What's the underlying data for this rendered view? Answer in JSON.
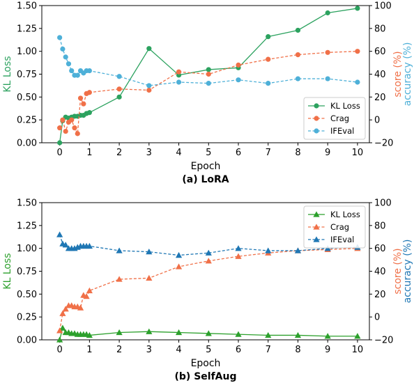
{
  "chart_data": [
    {
      "type": "line",
      "caption": "(a) LoRA",
      "xlabel": "Epoch",
      "ylabel": "KL Loss",
      "ylabel_right": [
        "score (%)",
        "accuracy (%)"
      ],
      "ylim": [
        0,
        1.5
      ],
      "ylim_right": [
        -20,
        100
      ],
      "x_ticks": [
        0,
        1,
        2,
        3,
        4,
        5,
        6,
        7,
        8,
        9,
        10
      ],
      "y_ticks": [
        0.0,
        0.25,
        0.5,
        0.75,
        1.0,
        1.25,
        1.5
      ],
      "y_tick_labels": [
        "0.00",
        "0.25",
        "0.50",
        "0.75",
        "1.00",
        "1.25",
        "1.50"
      ],
      "y_ticks_right": [
        -20,
        0,
        20,
        40,
        60,
        80,
        100
      ],
      "grid": false,
      "legend_position": "lower-right",
      "series": [
        {
          "name": "KL Loss",
          "axis": "left",
          "color": "#2ca25f",
          "marker": "circle",
          "dash": "solid",
          "x": [
            0,
            0.1,
            0.2,
            0.3,
            0.4,
            0.5,
            0.6,
            0.7,
            0.8,
            0.9,
            1,
            2,
            3,
            4,
            5,
            6,
            7,
            8,
            9,
            10
          ],
          "y": [
            0.0,
            0.24,
            0.28,
            0.27,
            0.28,
            0.29,
            0.29,
            0.3,
            0.3,
            0.32,
            0.33,
            0.5,
            1.03,
            0.74,
            0.8,
            0.82,
            1.16,
            1.23,
            1.42,
            1.47
          ]
        },
        {
          "name": "Crag",
          "axis": "right",
          "color": "#f07048",
          "marker": "circle",
          "dash": "dashed",
          "x": [
            0,
            0.1,
            0.2,
            0.3,
            0.4,
            0.5,
            0.6,
            0.7,
            0.8,
            0.9,
            1,
            2,
            3,
            4,
            5,
            6,
            7,
            8,
            9,
            10
          ],
          "y": [
            -7,
            0,
            -10,
            -2,
            0,
            -7,
            -12,
            19,
            14,
            23,
            24,
            27,
            26,
            42,
            40,
            48,
            53,
            57,
            59,
            60
          ]
        },
        {
          "name": "IFEval",
          "axis": "right",
          "color": "#4eb0d8",
          "marker": "circle",
          "dash": "dashed",
          "x": [
            0,
            0.1,
            0.2,
            0.3,
            0.4,
            0.5,
            0.6,
            0.7,
            0.8,
            0.9,
            1,
            2,
            3,
            4,
            5,
            6,
            7,
            8,
            9,
            10
          ],
          "y": [
            72,
            62,
            55,
            49,
            43,
            39,
            39,
            43,
            41,
            43,
            43,
            38,
            30,
            33,
            32,
            35,
            32,
            36,
            36,
            33
          ]
        }
      ]
    },
    {
      "type": "line",
      "caption": "(b) SelfAug",
      "xlabel": "Epoch",
      "ylabel": "KL Loss",
      "ylabel_right": [
        "score (%)",
        "accuracy (%)"
      ],
      "ylim": [
        0,
        1.5
      ],
      "ylim_right": [
        -20,
        100
      ],
      "x_ticks": [
        0,
        1,
        2,
        3,
        4,
        5,
        6,
        7,
        8,
        9,
        10
      ],
      "y_ticks": [
        0.0,
        0.25,
        0.5,
        0.75,
        1.0,
        1.25,
        1.5
      ],
      "y_tick_labels": [
        "0.00",
        "0.25",
        "0.50",
        "0.75",
        "1.00",
        "1.25",
        "1.50"
      ],
      "y_ticks_right": [
        -20,
        0,
        20,
        40,
        60,
        80,
        100
      ],
      "grid": false,
      "legend_position": "upper-right",
      "series": [
        {
          "name": "KL Loss",
          "axis": "left",
          "color": "#2ca02c",
          "marker": "triangle",
          "dash": "solid",
          "x": [
            0,
            0.1,
            0.2,
            0.3,
            0.4,
            0.5,
            0.6,
            0.7,
            0.8,
            0.9,
            1,
            2,
            3,
            4,
            5,
            6,
            7,
            8,
            9,
            10
          ],
          "y": [
            0.0,
            0.13,
            0.08,
            0.08,
            0.07,
            0.07,
            0.06,
            0.06,
            0.06,
            0.06,
            0.05,
            0.08,
            0.09,
            0.08,
            0.07,
            0.06,
            0.05,
            0.05,
            0.04,
            0.04
          ]
        },
        {
          "name": "Crag",
          "axis": "right",
          "color": "#f07048",
          "marker": "triangle",
          "dash": "dashed",
          "x": [
            0,
            0.1,
            0.2,
            0.3,
            0.4,
            0.5,
            0.6,
            0.7,
            0.8,
            0.9,
            1,
            2,
            3,
            4,
            5,
            6,
            7,
            8,
            9,
            10
          ],
          "y": [
            -12,
            3,
            7,
            10,
            10,
            9,
            9,
            8,
            19,
            18,
            23,
            33,
            34,
            44,
            49,
            53,
            56,
            58,
            59,
            60
          ]
        },
        {
          "name": "IFEval",
          "axis": "right",
          "color": "#1f77b4",
          "marker": "triangle",
          "dash": "dashed",
          "x": [
            0,
            0.1,
            0.2,
            0.3,
            0.4,
            0.5,
            0.6,
            0.7,
            0.8,
            0.9,
            1,
            2,
            3,
            4,
            5,
            6,
            7,
            8,
            9,
            10
          ],
          "y": [
            72,
            64,
            63,
            60,
            60,
            60,
            61,
            62,
            62,
            62,
            62,
            58,
            57,
            54,
            56,
            60,
            58,
            58,
            60,
            61
          ]
        }
      ]
    }
  ]
}
